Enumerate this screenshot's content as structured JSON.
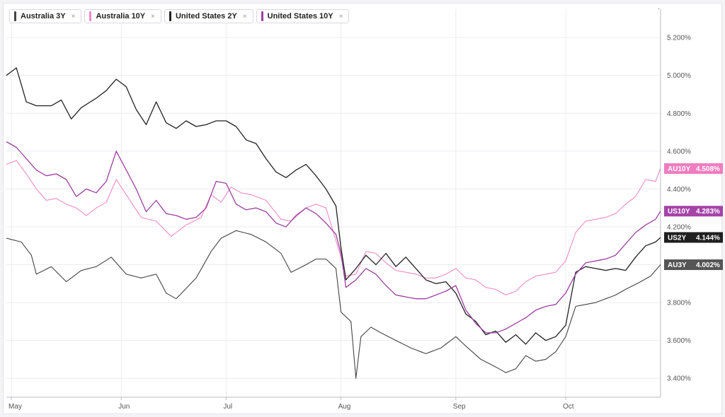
{
  "legend": [
    {
      "label": "Australia 3Y",
      "color": "#444444",
      "close": "×"
    },
    {
      "label": "Australia 10Y",
      "color": "#f08ac8",
      "close": "×"
    },
    {
      "label": "United States 2Y",
      "color": "#222222",
      "close": "×"
    },
    {
      "label": "United States 10Y",
      "color": "#9b3fa0",
      "close": "×"
    }
  ],
  "chart_data": {
    "type": "line",
    "ylim": [
      3.3,
      5.35
    ],
    "y_ticks": [
      3.4,
      3.6,
      3.8,
      4.0,
      4.2,
      4.4,
      4.6,
      4.8,
      5.0,
      5.2
    ],
    "y_tick_labels": [
      "3.400%",
      "3.600%",
      "3.800%",
      "4.000%",
      "4.200%",
      "4.400%",
      "4.600%",
      "4.800%",
      "5.000%",
      "5.200%"
    ],
    "x_months": [
      {
        "label": "May",
        "index": 1
      },
      {
        "label": "Jun",
        "index": 23
      },
      {
        "label": "Jul",
        "index": 44
      },
      {
        "label": "Aug",
        "index": 67
      },
      {
        "label": "Sep",
        "index": 90
      },
      {
        "label": "Oct",
        "index": 112
      }
    ],
    "n_points": 132,
    "series": [
      {
        "name": "Australia 3Y",
        "color": "#444444",
        "width": 1.1,
        "tag": {
          "label": "AU3Y",
          "value": "4.002%",
          "bg": "#555555"
        },
        "anchors": [
          [
            0,
            4.14
          ],
          [
            3,
            4.12
          ],
          [
            5,
            4.05
          ],
          [
            6,
            3.95
          ],
          [
            9,
            3.99
          ],
          [
            12,
            3.91
          ],
          [
            15,
            3.97
          ],
          [
            18,
            3.99
          ],
          [
            21,
            4.04
          ],
          [
            24,
            3.95
          ],
          [
            27,
            3.93
          ],
          [
            30,
            3.95
          ],
          [
            32,
            3.85
          ],
          [
            34,
            3.82
          ],
          [
            38,
            3.93
          ],
          [
            41,
            4.07
          ],
          [
            43,
            4.14
          ],
          [
            46,
            4.18
          ],
          [
            49,
            4.16
          ],
          [
            52,
            4.12
          ],
          [
            55,
            4.06
          ],
          [
            57,
            3.96
          ],
          [
            60,
            4.0
          ],
          [
            62,
            4.03
          ],
          [
            64,
            4.03
          ],
          [
            66,
            3.98
          ],
          [
            67,
            3.75
          ],
          [
            69,
            3.7
          ],
          [
            70,
            3.4
          ],
          [
            71,
            3.62
          ],
          [
            73,
            3.67
          ],
          [
            75,
            3.64
          ],
          [
            78,
            3.6
          ],
          [
            81,
            3.56
          ],
          [
            84,
            3.53
          ],
          [
            87,
            3.56
          ],
          [
            90,
            3.62
          ],
          [
            92,
            3.57
          ],
          [
            95,
            3.5
          ],
          [
            98,
            3.46
          ],
          [
            100,
            3.43
          ],
          [
            102,
            3.45
          ],
          [
            104,
            3.52
          ],
          [
            106,
            3.49
          ],
          [
            108,
            3.5
          ],
          [
            110,
            3.54
          ],
          [
            112,
            3.62
          ],
          [
            114,
            3.78
          ],
          [
            116,
            3.79
          ],
          [
            118,
            3.8
          ],
          [
            120,
            3.82
          ],
          [
            122,
            3.84
          ],
          [
            124,
            3.87
          ],
          [
            127,
            3.91
          ],
          [
            129,
            3.94
          ],
          [
            131,
            4.0
          ]
        ]
      },
      {
        "name": "Australia 10Y",
        "color": "#f08ac8",
        "width": 1.1,
        "tag": {
          "label": "AU10Y",
          "value": "4.508%",
          "bg": "#f07dc0"
        },
        "anchors": [
          [
            0,
            4.53
          ],
          [
            2,
            4.55
          ],
          [
            4,
            4.48
          ],
          [
            6,
            4.4
          ],
          [
            8,
            4.34
          ],
          [
            10,
            4.35
          ],
          [
            12,
            4.32
          ],
          [
            14,
            4.3
          ],
          [
            16,
            4.26
          ],
          [
            18,
            4.3
          ],
          [
            20,
            4.33
          ],
          [
            22,
            4.45
          ],
          [
            24,
            4.37
          ],
          [
            27,
            4.25
          ],
          [
            30,
            4.23
          ],
          [
            33,
            4.15
          ],
          [
            36,
            4.21
          ],
          [
            39,
            4.25
          ],
          [
            41,
            4.37
          ],
          [
            43,
            4.33
          ],
          [
            45,
            4.41
          ],
          [
            47,
            4.38
          ],
          [
            49,
            4.37
          ],
          [
            52,
            4.34
          ],
          [
            55,
            4.24
          ],
          [
            57,
            4.23
          ],
          [
            60,
            4.3
          ],
          [
            62,
            4.32
          ],
          [
            64,
            4.3
          ],
          [
            67,
            4.04
          ],
          [
            68,
            3.94
          ],
          [
            70,
            3.95
          ],
          [
            72,
            4.07
          ],
          [
            74,
            4.06
          ],
          [
            76,
            4.01
          ],
          [
            78,
            3.97
          ],
          [
            80,
            3.96
          ],
          [
            82,
            3.95
          ],
          [
            84,
            3.93
          ],
          [
            86,
            3.93
          ],
          [
            88,
            3.95
          ],
          [
            90,
            3.98
          ],
          [
            92,
            3.93
          ],
          [
            94,
            3.92
          ],
          [
            96,
            3.88
          ],
          [
            98,
            3.87
          ],
          [
            100,
            3.84
          ],
          [
            102,
            3.86
          ],
          [
            104,
            3.91
          ],
          [
            106,
            3.94
          ],
          [
            108,
            3.95
          ],
          [
            110,
            3.96
          ],
          [
            112,
            4.02
          ],
          [
            114,
            4.17
          ],
          [
            116,
            4.23
          ],
          [
            118,
            4.24
          ],
          [
            120,
            4.25
          ],
          [
            122,
            4.27
          ],
          [
            124,
            4.32
          ],
          [
            126,
            4.36
          ],
          [
            128,
            4.45
          ],
          [
            130,
            4.44
          ],
          [
            131,
            4.508
          ]
        ]
      },
      {
        "name": "United States 2Y",
        "color": "#222222",
        "width": 1.3,
        "tag": {
          "label": "US2Y",
          "value": "4.144%",
          "bg": "#1f1f1f"
        },
        "anchors": [
          [
            0,
            5.0
          ],
          [
            2,
            5.04
          ],
          [
            4,
            4.86
          ],
          [
            6,
            4.84
          ],
          [
            9,
            4.84
          ],
          [
            11,
            4.87
          ],
          [
            13,
            4.77
          ],
          [
            15,
            4.83
          ],
          [
            18,
            4.88
          ],
          [
            20,
            4.92
          ],
          [
            22,
            4.98
          ],
          [
            24,
            4.94
          ],
          [
            26,
            4.82
          ],
          [
            28,
            4.74
          ],
          [
            30,
            4.86
          ],
          [
            32,
            4.75
          ],
          [
            34,
            4.72
          ],
          [
            36,
            4.76
          ],
          [
            38,
            4.73
          ],
          [
            40,
            4.74
          ],
          [
            42,
            4.76
          ],
          [
            44,
            4.76
          ],
          [
            46,
            4.73
          ],
          [
            48,
            4.66
          ],
          [
            50,
            4.64
          ],
          [
            52,
            4.56
          ],
          [
            54,
            4.49
          ],
          [
            56,
            4.46
          ],
          [
            58,
            4.5
          ],
          [
            60,
            4.53
          ],
          [
            62,
            4.47
          ],
          [
            64,
            4.4
          ],
          [
            66,
            4.31
          ],
          [
            67,
            4.09
          ],
          [
            68,
            3.92
          ],
          [
            70,
            3.98
          ],
          [
            72,
            4.05
          ],
          [
            74,
            4.0
          ],
          [
            76,
            4.06
          ],
          [
            78,
            3.99
          ],
          [
            80,
            4.04
          ],
          [
            82,
            3.98
          ],
          [
            84,
            3.92
          ],
          [
            86,
            3.9
          ],
          [
            88,
            3.91
          ],
          [
            90,
            3.85
          ],
          [
            92,
            3.74
          ],
          [
            94,
            3.7
          ],
          [
            96,
            3.63
          ],
          [
            98,
            3.65
          ],
          [
            100,
            3.59
          ],
          [
            102,
            3.63
          ],
          [
            104,
            3.58
          ],
          [
            106,
            3.64
          ],
          [
            108,
            3.6
          ],
          [
            110,
            3.62
          ],
          [
            112,
            3.68
          ],
          [
            114,
            3.96
          ],
          [
            116,
            3.99
          ],
          [
            118,
            3.98
          ],
          [
            120,
            3.97
          ],
          [
            122,
            3.98
          ],
          [
            124,
            3.97
          ],
          [
            126,
            4.04
          ],
          [
            128,
            4.1
          ],
          [
            130,
            4.12
          ],
          [
            131,
            4.144
          ]
        ]
      },
      {
        "name": "United States 10Y",
        "color": "#9b3fa0",
        "width": 1.3,
        "tag": {
          "label": "US10Y",
          "value": "4.283%",
          "bg": "#a443a8"
        },
        "anchors": [
          [
            0,
            4.65
          ],
          [
            2,
            4.62
          ],
          [
            4,
            4.56
          ],
          [
            6,
            4.5
          ],
          [
            8,
            4.47
          ],
          [
            10,
            4.48
          ],
          [
            12,
            4.45
          ],
          [
            14,
            4.36
          ],
          [
            16,
            4.4
          ],
          [
            18,
            4.38
          ],
          [
            20,
            4.44
          ],
          [
            22,
            4.6
          ],
          [
            24,
            4.5
          ],
          [
            26,
            4.4
          ],
          [
            28,
            4.28
          ],
          [
            30,
            4.34
          ],
          [
            32,
            4.27
          ],
          [
            34,
            4.26
          ],
          [
            36,
            4.24
          ],
          [
            38,
            4.25
          ],
          [
            40,
            4.3
          ],
          [
            42,
            4.44
          ],
          [
            44,
            4.43
          ],
          [
            46,
            4.32
          ],
          [
            48,
            4.29
          ],
          [
            50,
            4.3
          ],
          [
            52,
            4.28
          ],
          [
            54,
            4.22
          ],
          [
            56,
            4.2
          ],
          [
            58,
            4.26
          ],
          [
            60,
            4.3
          ],
          [
            62,
            4.27
          ],
          [
            64,
            4.22
          ],
          [
            66,
            4.16
          ],
          [
            67,
            4.06
          ],
          [
            68,
            3.88
          ],
          [
            70,
            3.92
          ],
          [
            72,
            3.98
          ],
          [
            74,
            3.95
          ],
          [
            76,
            3.89
          ],
          [
            78,
            3.84
          ],
          [
            80,
            3.83
          ],
          [
            82,
            3.82
          ],
          [
            84,
            3.82
          ],
          [
            86,
            3.84
          ],
          [
            88,
            3.86
          ],
          [
            90,
            3.89
          ],
          [
            92,
            3.76
          ],
          [
            94,
            3.69
          ],
          [
            96,
            3.64
          ],
          [
            98,
            3.64
          ],
          [
            100,
            3.66
          ],
          [
            102,
            3.69
          ],
          [
            104,
            3.72
          ],
          [
            106,
            3.76
          ],
          [
            108,
            3.78
          ],
          [
            110,
            3.79
          ],
          [
            112,
            3.85
          ],
          [
            114,
            3.95
          ],
          [
            116,
            4.01
          ],
          [
            118,
            4.02
          ],
          [
            120,
            4.03
          ],
          [
            122,
            4.05
          ],
          [
            124,
            4.11
          ],
          [
            126,
            4.17
          ],
          [
            128,
            4.21
          ],
          [
            130,
            4.24
          ],
          [
            131,
            4.283
          ]
        ]
      }
    ]
  }
}
